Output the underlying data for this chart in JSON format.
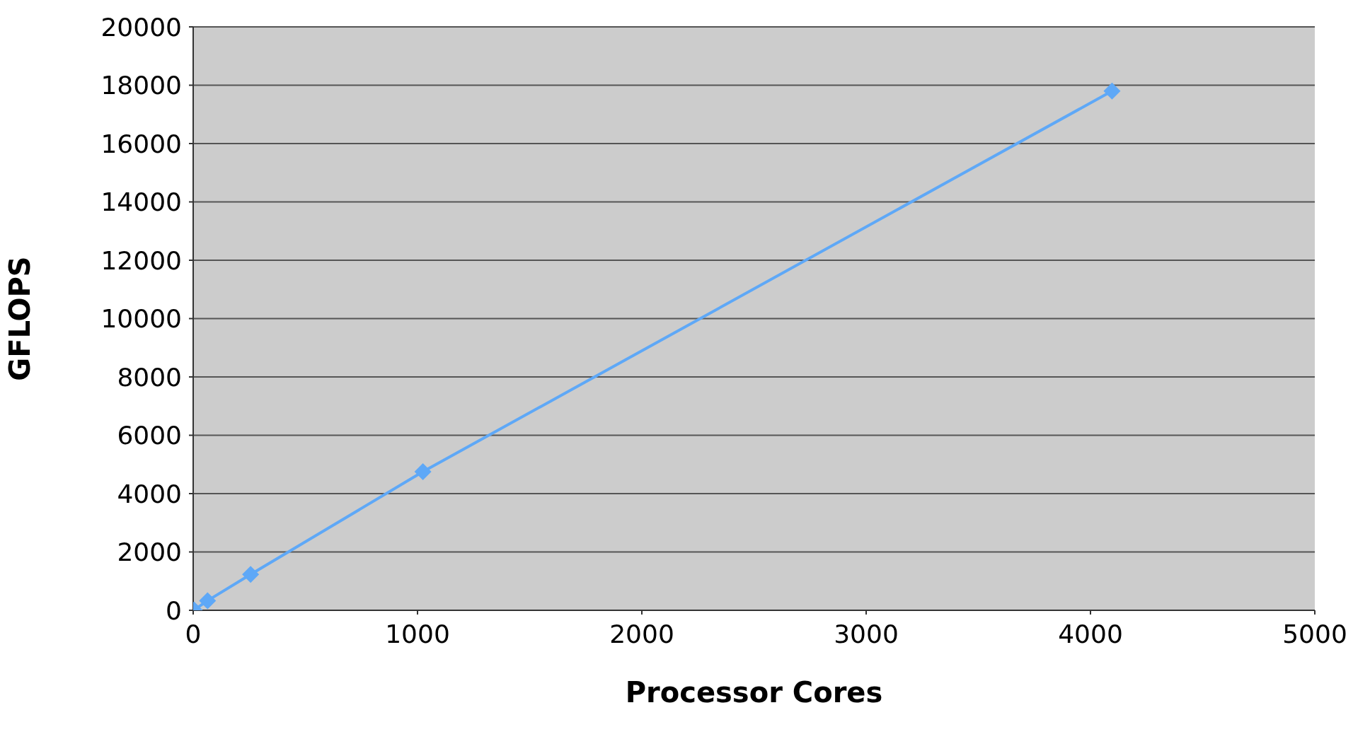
{
  "chart_data": {
    "type": "line",
    "xlabel": "Processor Cores",
    "ylabel": "GFLOPS",
    "x": [
      4,
      64,
      256,
      1024,
      4096
    ],
    "series": [
      {
        "color": "#5ea8f7",
        "values": [
          10,
          330,
          1230,
          4750,
          17800
        ]
      }
    ],
    "xlim": [
      0,
      5000
    ],
    "xticks": [
      0,
      1000,
      2000,
      3000,
      4000,
      5000
    ],
    "ylim": [
      0,
      20000
    ],
    "yticks": [
      0,
      2000,
      4000,
      6000,
      8000,
      10000,
      12000,
      14000,
      16000,
      18000,
      20000
    ],
    "grid": "y",
    "marker": "diamond",
    "line_style": "solid",
    "legend": false
  }
}
